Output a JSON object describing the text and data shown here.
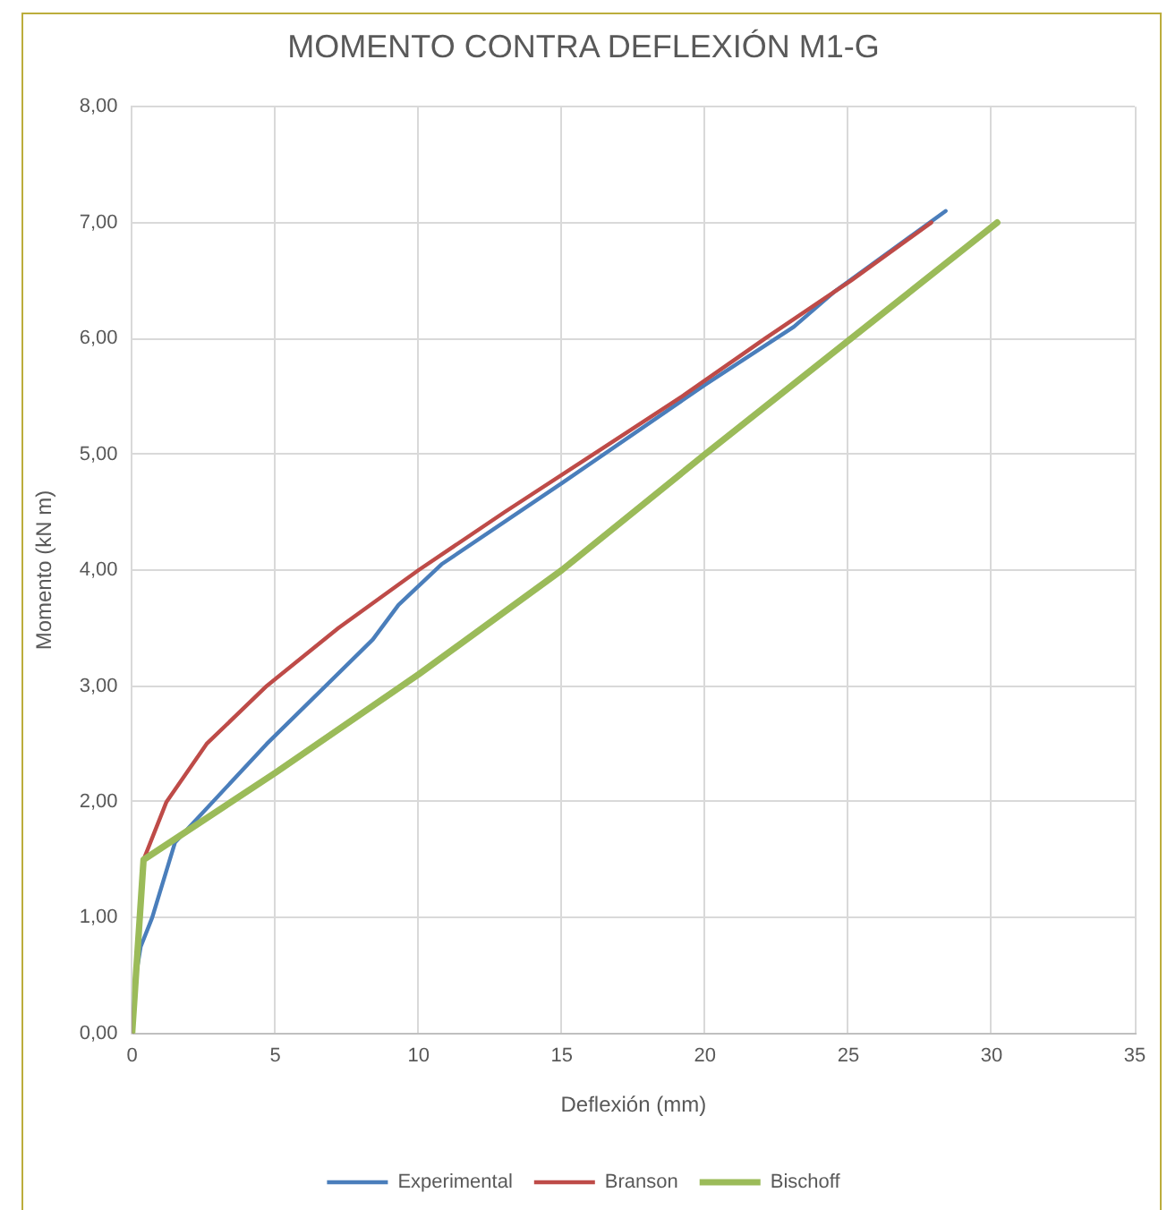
{
  "chart_data": {
    "type": "line",
    "title": "MOMENTO CONTRA DEFLEXIÓN M1-G",
    "xlabel": "Deflexión (mm)",
    "ylabel": "Momento (kN m)",
    "xlim": [
      0,
      35
    ],
    "xticks": [
      0,
      5,
      10,
      15,
      20,
      25,
      30,
      35
    ],
    "ylim": [
      0,
      8
    ],
    "yticks": [
      {
        "value": 0,
        "label": "0,00"
      },
      {
        "value": 1,
        "label": "1,00"
      },
      {
        "value": 2,
        "label": "2,00"
      },
      {
        "value": 3,
        "label": "3,00"
      },
      {
        "value": 4,
        "label": "4,00"
      },
      {
        "value": 5,
        "label": "5,00"
      },
      {
        "value": 6,
        "label": "6,00"
      },
      {
        "value": 7,
        "label": "7,00"
      },
      {
        "value": 8,
        "label": "8,00"
      }
    ],
    "grid": true,
    "legend": "bottom",
    "marker": "none",
    "series": [
      {
        "name": "Experimental",
        "color": "#4a7ebb",
        "x": [
          0,
          0.1,
          0.3,
          0.7,
          1.5,
          4.7,
          8.4,
          9.3,
          10.8,
          15,
          20,
          23.1,
          24.5,
          28.4
        ],
        "values": [
          0,
          0.45,
          0.75,
          1,
          1.65,
          2.5,
          3.4,
          3.7,
          4.05,
          4.75,
          5.6,
          6.1,
          6.4,
          7.1
        ]
      },
      {
        "name": "Branson",
        "color": "#be4b48",
        "x": [
          0,
          0.4,
          1.2,
          2.6,
          4.7,
          7.2,
          10,
          13,
          16.1,
          19.2,
          22.1,
          25.1,
          27.9
        ],
        "values": [
          0,
          1.5,
          2,
          2.5,
          3,
          3.5,
          4,
          4.5,
          5,
          5.5,
          6,
          6.5,
          7
        ]
      },
      {
        "name": "Bischoff",
        "color": "#9bbb59",
        "x": [
          0,
          0.4,
          5,
          10,
          15,
          20,
          25.1,
          30.2
        ],
        "values": [
          0,
          1.5,
          2.25,
          3.1,
          4,
          5,
          6,
          7
        ]
      }
    ]
  }
}
